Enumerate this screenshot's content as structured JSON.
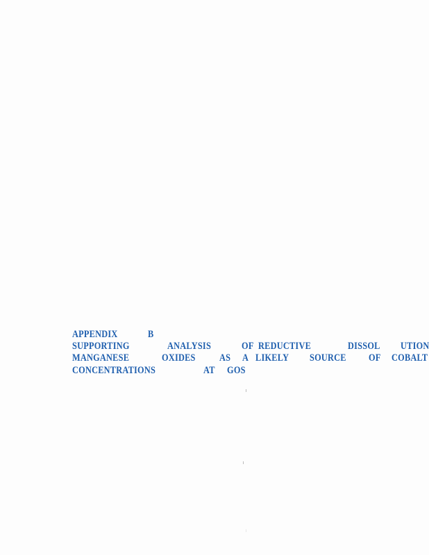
{
  "heading": {
    "line1": [
      "APPENDIX",
      "B"
    ],
    "line2": [
      "SUPPORTING",
      "ANALYSIS",
      "OF",
      "REDUCTIVE",
      "DISSOL",
      "UTION"
    ],
    "line3": [
      "MANGANESE",
      "OXIDES",
      "AS",
      "A",
      "LIKELY",
      "SOURCE",
      "OF",
      "COBALT"
    ],
    "line4": [
      "CONCENTRATIONS",
      "AT",
      "GOS"
    ]
  },
  "colors": {
    "heading": "#1f5fae",
    "background": "#fdfdfd"
  }
}
